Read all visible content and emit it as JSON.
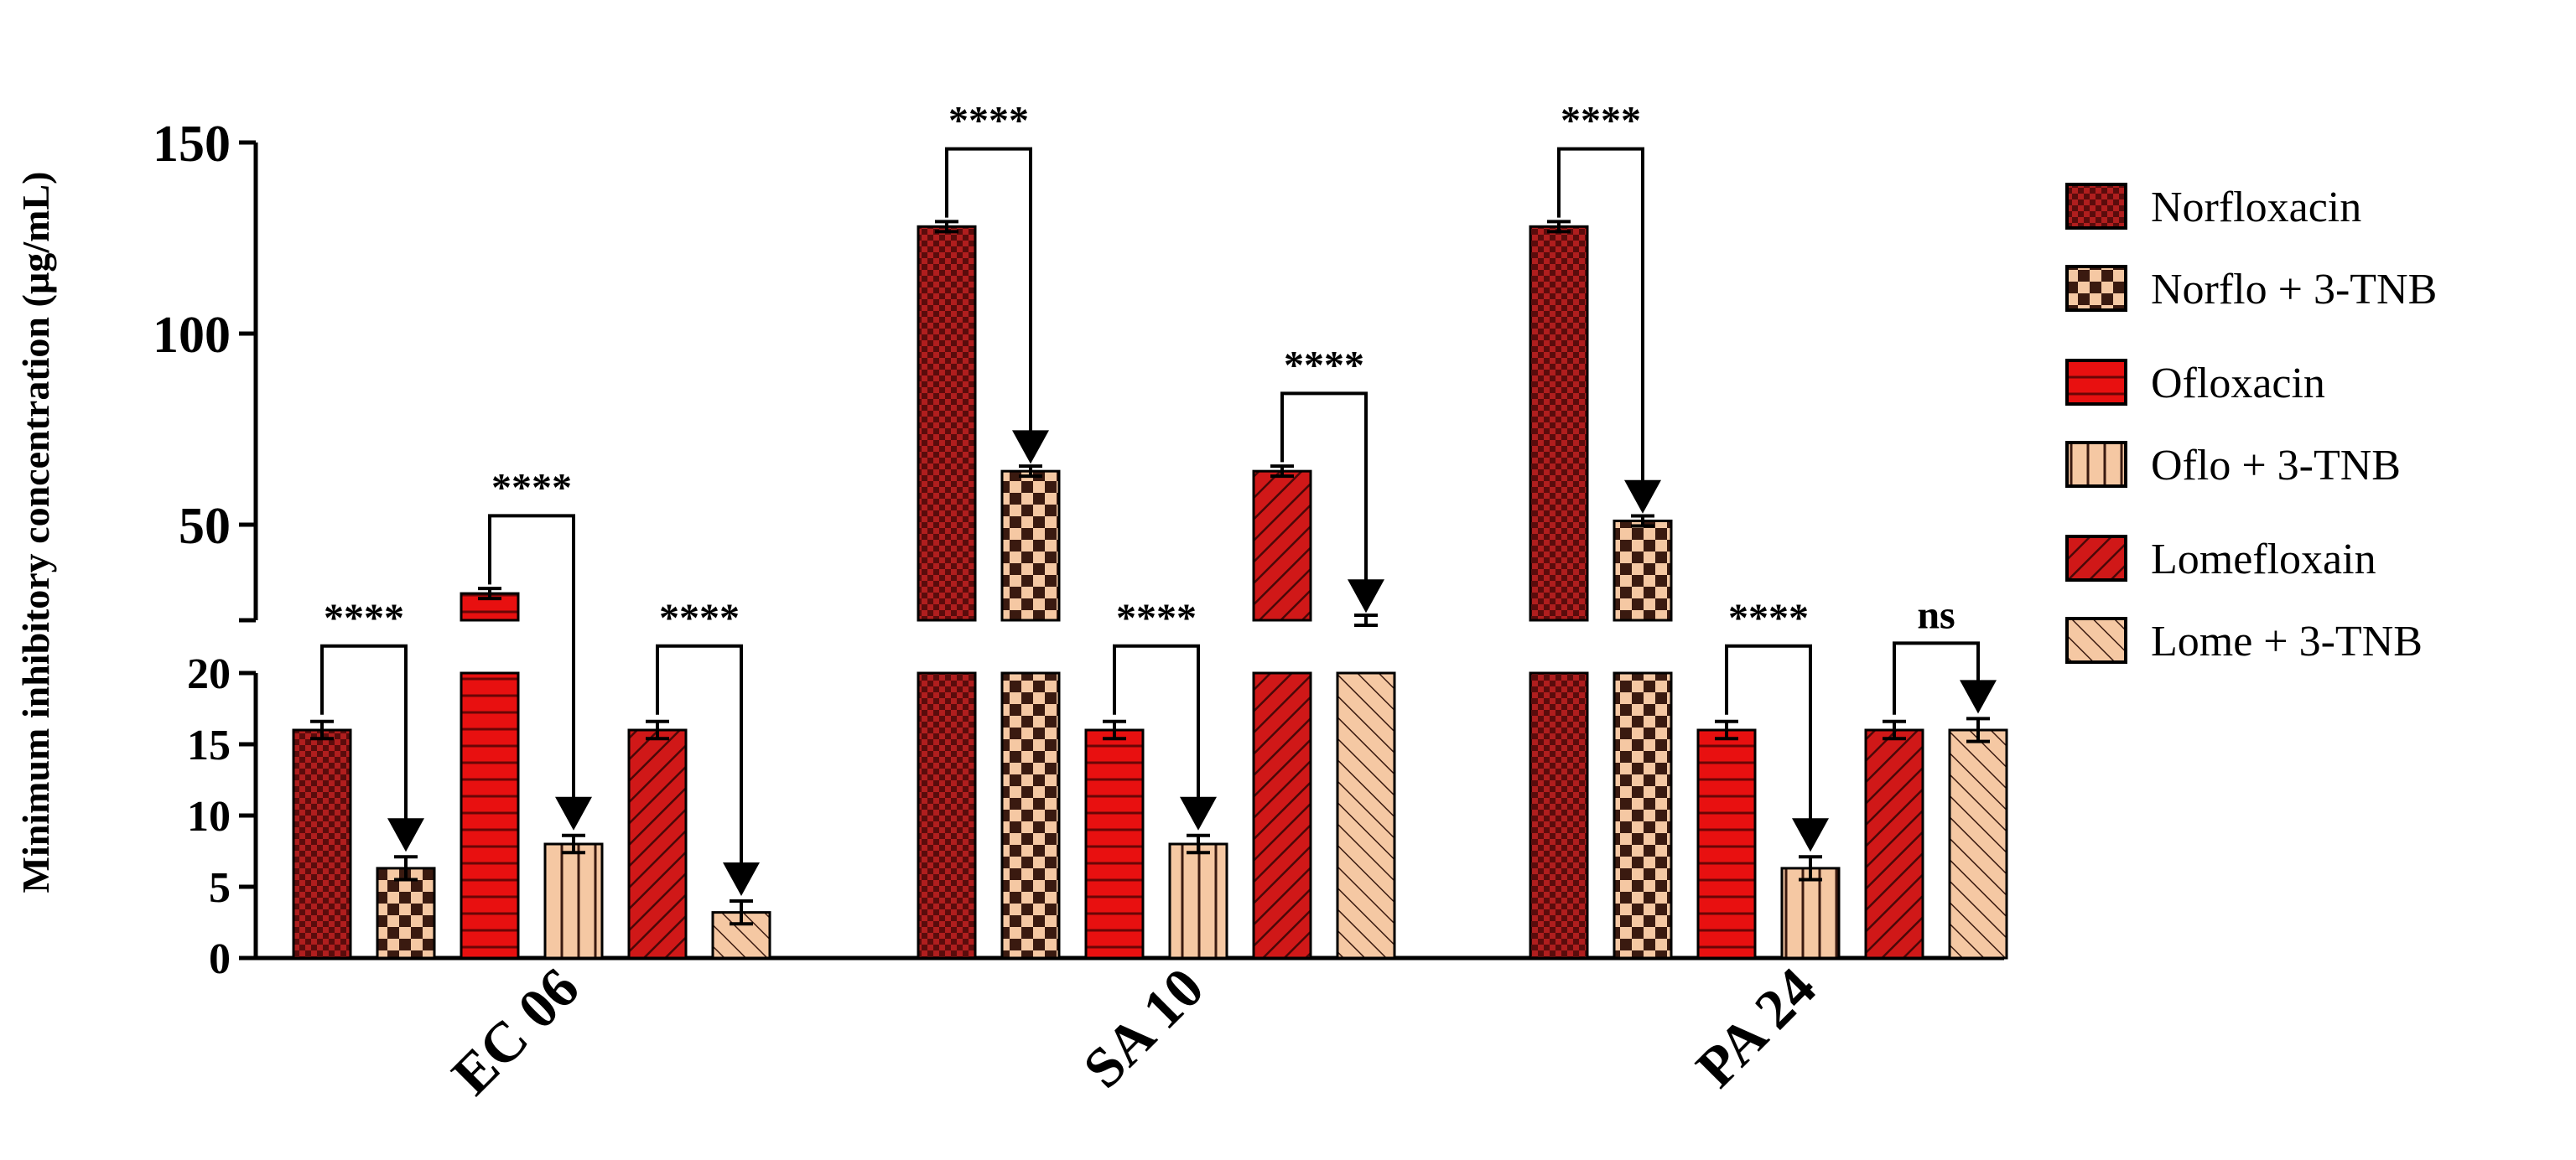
{
  "chart_data": {
    "type": "bar",
    "ylabel": "Minimum inhibitory concentration (µg/mL)",
    "xlabel": "",
    "y_axis_break": {
      "lower_range": [
        0,
        20
      ],
      "upper_range": [
        25,
        150
      ],
      "lower_ticks": [
        "0",
        "5",
        "10",
        "15",
        "20"
      ],
      "upper_ticks": [
        "50",
        "100",
        "150"
      ]
    },
    "categories": [
      "EC 06",
      "SA 10",
      "PA 24"
    ],
    "series": [
      {
        "name": "Norfloxacin",
        "color": "#b01e1e",
        "pattern": "dense-check",
        "values": [
          16,
          128,
          128
        ],
        "errors": [
          0.6,
          0.6,
          0.6
        ]
      },
      {
        "name": "Norflo + 3-TNB",
        "color": "#f5c8a3",
        "pattern": "checker",
        "values": [
          6.3,
          64,
          51
        ],
        "errors": [
          0.8,
          0.6,
          0.6
        ]
      },
      {
        "name": "Ofloxacin",
        "color": "#e81010",
        "pattern": "horizontal",
        "values": [
          32,
          16,
          16
        ],
        "errors": [
          0.6,
          0.6,
          0.6
        ]
      },
      {
        "name": "Oflo + 3-TNB",
        "color": "#f5c8a3",
        "pattern": "vertical",
        "values": [
          8,
          8,
          6.3
        ],
        "errors": [
          0.6,
          0.6,
          0.8
        ]
      },
      {
        "name": "Lomefloxain",
        "color": "#d01818",
        "pattern": "diagonal",
        "values": [
          16,
          64,
          16
        ],
        "errors": [
          0.6,
          0.6,
          0.6
        ]
      },
      {
        "name": "Lome + 3-TNB",
        "color": "#f5c8a3",
        "pattern": "diagonal-back",
        "values": [
          3.2,
          25,
          16
        ],
        "errors": [
          0.8,
          0.6,
          0.8
        ]
      }
    ],
    "significance": [
      {
        "category": "EC 06",
        "pair": [
          0,
          1
        ],
        "label": "****"
      },
      {
        "category": "EC 06",
        "pair": [
          2,
          3
        ],
        "label": "****"
      },
      {
        "category": "EC 06",
        "pair": [
          4,
          5
        ],
        "label": "****"
      },
      {
        "category": "SA 10",
        "pair": [
          0,
          1
        ],
        "label": "****"
      },
      {
        "category": "SA 10",
        "pair": [
          2,
          3
        ],
        "label": "****"
      },
      {
        "category": "SA 10",
        "pair": [
          4,
          5
        ],
        "label": "****"
      },
      {
        "category": "PA 24",
        "pair": [
          0,
          1
        ],
        "label": "****"
      },
      {
        "category": "PA 24",
        "pair": [
          2,
          3
        ],
        "label": "****"
      },
      {
        "category": "PA 24",
        "pair": [
          4,
          5
        ],
        "label": "ns"
      }
    ],
    "legend_position": "right"
  }
}
